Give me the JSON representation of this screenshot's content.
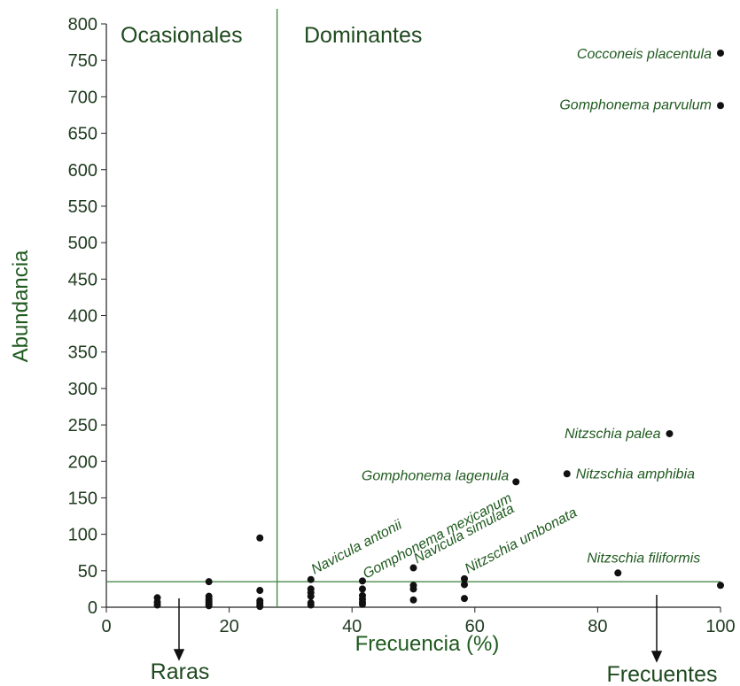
{
  "chart_data": {
    "type": "scatter",
    "xlabel": "Frecuencia (%)",
    "ylabel": "Abundancia",
    "xlim": [
      0,
      100
    ],
    "ylim": [
      0,
      800
    ],
    "xticks": [
      0,
      20,
      40,
      60,
      80,
      100
    ],
    "yticks": [
      0,
      50,
      100,
      150,
      200,
      250,
      300,
      350,
      400,
      450,
      500,
      550,
      600,
      650,
      700,
      750,
      800
    ],
    "grid": false,
    "colors": {
      "points": "#111111",
      "lines": "#4a8a4a",
      "text": "#1f5a1f"
    },
    "thresholds": {
      "frequency": 27.8,
      "abundance": 35
    },
    "quadrant_labels": {
      "occasional": "Ocasionales",
      "dominant": "Dominantes",
      "rare": "Raras",
      "frequent": "Frecuentes"
    },
    "points": [
      {
        "x": 8.3,
        "y": 13
      },
      {
        "x": 8.3,
        "y": 7
      },
      {
        "x": 8.3,
        "y": 3
      },
      {
        "x": 16.7,
        "y": 35
      },
      {
        "x": 16.7,
        "y": 15
      },
      {
        "x": 16.7,
        "y": 11
      },
      {
        "x": 16.7,
        "y": 8
      },
      {
        "x": 16.7,
        "y": 5
      },
      {
        "x": 16.7,
        "y": 2
      },
      {
        "x": 25,
        "y": 95
      },
      {
        "x": 25,
        "y": 23
      },
      {
        "x": 25,
        "y": 9
      },
      {
        "x": 25,
        "y": 6
      },
      {
        "x": 25,
        "y": 3
      },
      {
        "x": 25,
        "y": 1
      },
      {
        "x": 33.3,
        "y": 38
      },
      {
        "x": 33.3,
        "y": 25
      },
      {
        "x": 33.3,
        "y": 20
      },
      {
        "x": 33.3,
        "y": 15
      },
      {
        "x": 33.3,
        "y": 6
      },
      {
        "x": 33.3,
        "y": 3
      },
      {
        "x": 41.7,
        "y": 36
      },
      {
        "x": 41.7,
        "y": 25
      },
      {
        "x": 41.7,
        "y": 16
      },
      {
        "x": 41.7,
        "y": 11
      },
      {
        "x": 41.7,
        "y": 7
      },
      {
        "x": 41.7,
        "y": 4
      },
      {
        "x": 50,
        "y": 54
      },
      {
        "x": 50,
        "y": 30
      },
      {
        "x": 50,
        "y": 25
      },
      {
        "x": 50,
        "y": 10
      },
      {
        "x": 58.3,
        "y": 39
      },
      {
        "x": 58.3,
        "y": 31
      },
      {
        "x": 58.3,
        "y": 12
      },
      {
        "x": 66.7,
        "y": 172,
        "label": "Gomphonema lagenula"
      },
      {
        "x": 75,
        "y": 183,
        "label": "Nitzschia amphibia"
      },
      {
        "x": 83.3,
        "y": 47,
        "label": "Nitzschia filiformis"
      },
      {
        "x": 91.7,
        "y": 238,
        "label": "Nitzschia palea"
      },
      {
        "x": 100,
        "y": 760,
        "label": "Cocconeis placentula"
      },
      {
        "x": 100,
        "y": 688,
        "label": "Gomphonema parvulum"
      },
      {
        "x": 100,
        "y": 30
      }
    ],
    "rotated_labels": [
      "Navicula antonii",
      "Gomphonema mexicanum",
      "Navicula simulata",
      "Nitzschia umbonata"
    ]
  }
}
